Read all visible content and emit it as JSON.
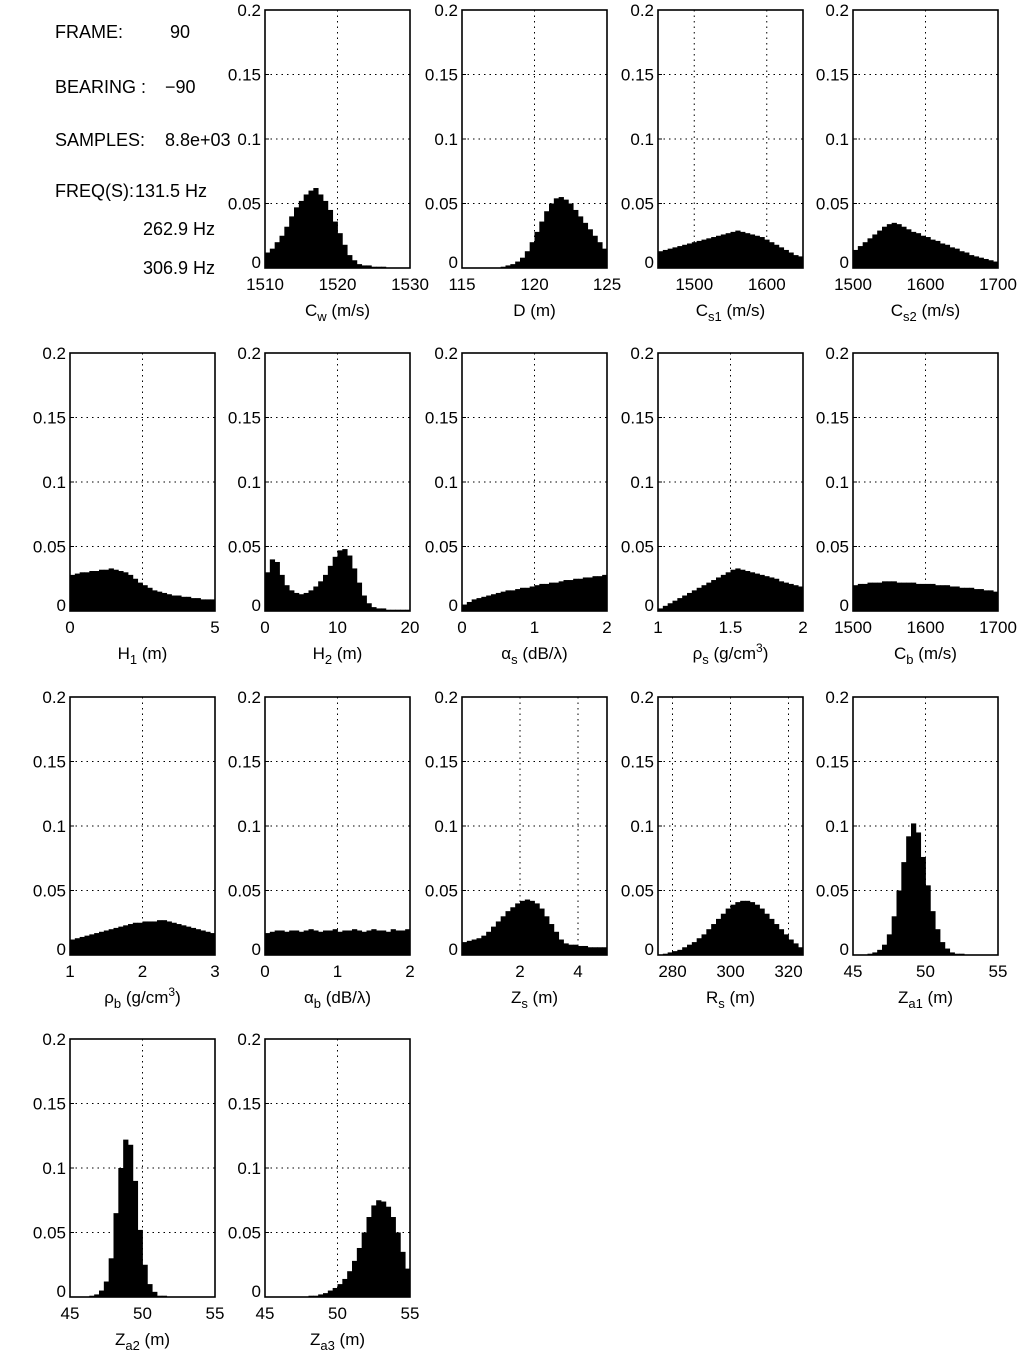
{
  "info": {
    "frame_label": "FRAME:",
    "frame_value": "90",
    "bearing_label": "BEARING :",
    "bearing_value": "−90",
    "samples_label": "SAMPLES:",
    "samples_value": "8.8e+03",
    "freq_label": "FREQ(S):",
    "freqs": [
      "131.5 Hz",
      "262.9 Hz",
      "306.9 Hz"
    ]
  },
  "chart_data": [
    {
      "type": "bar",
      "xlabel": "C_w (m/s)",
      "xlabel_main": "C",
      "xlabel_sub": "w",
      "xlabel_unit": " (m/s)",
      "xlim": [
        1510,
        1530
      ],
      "ylim": [
        0,
        0.2
      ],
      "yticks": [
        "0",
        "0.05",
        "0.1",
        "0.15",
        "0.2"
      ],
      "xticks": [
        1510,
        1520,
        1530
      ],
      "xtick_labels": [
        "1510",
        "1520",
        "1530"
      ],
      "grid_x": [
        1520
      ],
      "values": [
        0.012,
        0.015,
        0.02,
        0.025,
        0.032,
        0.04,
        0.047,
        0.052,
        0.057,
        0.06,
        0.062,
        0.057,
        0.052,
        0.045,
        0.036,
        0.027,
        0.018,
        0.01,
        0.006,
        0.003,
        0.002,
        0.002,
        0.001,
        0.001,
        0.001,
        0,
        0,
        0,
        0,
        0
      ]
    },
    {
      "type": "bar",
      "xlabel": "D (m)",
      "xlabel_main": "D",
      "xlabel_sub": "",
      "xlabel_unit": " (m)",
      "xlim": [
        115,
        125
      ],
      "ylim": [
        0,
        0.2
      ],
      "yticks": [
        "0",
        "0.05",
        "0.1",
        "0.15",
        "0.2"
      ],
      "xticks": [
        115,
        120,
        125
      ],
      "xtick_labels": [
        "115",
        "120",
        "125"
      ],
      "grid_x": [
        120
      ],
      "values": [
        0,
        0,
        0,
        0,
        0,
        0,
        0,
        0,
        0.001,
        0.002,
        0.003,
        0.005,
        0.008,
        0.013,
        0.02,
        0.028,
        0.036,
        0.044,
        0.05,
        0.054,
        0.055,
        0.053,
        0.05,
        0.045,
        0.04,
        0.035,
        0.03,
        0.025,
        0.02,
        0.015
      ]
    },
    {
      "type": "bar",
      "xlabel": "C_s1 (m/s)",
      "xlabel_main": "C",
      "xlabel_sub": "s1",
      "xlabel_unit": " (m/s)",
      "xlim": [
        1450,
        1650
      ],
      "ylim": [
        0,
        0.2
      ],
      "yticks": [
        "0",
        "0.05",
        "0.1",
        "0.15",
        "0.2"
      ],
      "xticks": [
        1500,
        1600
      ],
      "xtick_labels": [
        "1500",
        "1600"
      ],
      "grid_x": [
        1500,
        1600
      ],
      "values": [
        0.013,
        0.014,
        0.015,
        0.016,
        0.017,
        0.018,
        0.019,
        0.02,
        0.021,
        0.022,
        0.023,
        0.024,
        0.025,
        0.026,
        0.027,
        0.028,
        0.029,
        0.028,
        0.027,
        0.026,
        0.025,
        0.024,
        0.022,
        0.02,
        0.018,
        0.016,
        0.014,
        0.012,
        0.01,
        0.009
      ]
    },
    {
      "type": "bar",
      "xlabel": "C_s2 (m/s)",
      "xlabel_main": "C",
      "xlabel_sub": "s2",
      "xlabel_unit": " (m/s)",
      "xlim": [
        1500,
        1700
      ],
      "ylim": [
        0,
        0.2
      ],
      "yticks": [
        "0",
        "0.05",
        "0.1",
        "0.15",
        "0.2"
      ],
      "xticks": [
        1500,
        1600,
        1700
      ],
      "xtick_labels": [
        "1500",
        "1600",
        "1700"
      ],
      "grid_x": [
        1600
      ],
      "values": [
        0.014,
        0.017,
        0.02,
        0.023,
        0.026,
        0.029,
        0.032,
        0.034,
        0.035,
        0.034,
        0.032,
        0.03,
        0.028,
        0.027,
        0.025,
        0.024,
        0.022,
        0.021,
        0.019,
        0.018,
        0.016,
        0.015,
        0.013,
        0.012,
        0.01,
        0.009,
        0.008,
        0.007,
        0.006,
        0.005
      ]
    },
    {
      "type": "bar",
      "xlabel": "H_1 (m)",
      "xlabel_main": "H",
      "xlabel_sub": "1",
      "xlabel_unit": " (m)",
      "xlim": [
        0,
        5
      ],
      "ylim": [
        0,
        0.2
      ],
      "yticks": [
        "0",
        "0.05",
        "0.1",
        "0.15",
        "0.2"
      ],
      "xticks": [
        0,
        5
      ],
      "xtick_labels": [
        "0",
        "5"
      ],
      "grid_x": [
        2.5
      ],
      "values": [
        0.028,
        0.029,
        0.03,
        0.03,
        0.031,
        0.031,
        0.032,
        0.032,
        0.033,
        0.032,
        0.031,
        0.03,
        0.028,
        0.025,
        0.022,
        0.02,
        0.018,
        0.016,
        0.015,
        0.014,
        0.013,
        0.012,
        0.012,
        0.011,
        0.011,
        0.01,
        0.01,
        0.009,
        0.009,
        0.009
      ]
    },
    {
      "type": "bar",
      "xlabel": "H_2 (m)",
      "xlabel_main": "H",
      "xlabel_sub": "2",
      "xlabel_unit": " (m)",
      "xlim": [
        0,
        20
      ],
      "ylim": [
        0,
        0.2
      ],
      "yticks": [
        "0",
        "0.05",
        "0.1",
        "0.15",
        "0.2"
      ],
      "xticks": [
        0,
        10,
        20
      ],
      "xtick_labels": [
        "0",
        "10",
        "20"
      ],
      "grid_x": [
        10
      ],
      "values": [
        0.03,
        0.04,
        0.038,
        0.028,
        0.02,
        0.016,
        0.014,
        0.013,
        0.014,
        0.016,
        0.019,
        0.023,
        0.028,
        0.035,
        0.042,
        0.047,
        0.048,
        0.043,
        0.033,
        0.022,
        0.012,
        0.006,
        0.003,
        0.002,
        0.002,
        0.001,
        0.001,
        0.001,
        0.001,
        0.001
      ]
    },
    {
      "type": "bar",
      "xlabel": "α_s (dB/λ)",
      "xlabel_main": "α",
      "xlabel_sub": "s",
      "xlabel_unit": " (dB/λ)",
      "xlim": [
        0,
        2
      ],
      "ylim": [
        0,
        0.2
      ],
      "yticks": [
        "0",
        "0.05",
        "0.1",
        "0.15",
        "0.2"
      ],
      "xticks": [
        0,
        1,
        2
      ],
      "xtick_labels": [
        "0",
        "1",
        "2"
      ],
      "grid_x": [
        1
      ],
      "values": [
        0.005,
        0.007,
        0.009,
        0.01,
        0.011,
        0.012,
        0.013,
        0.014,
        0.015,
        0.016,
        0.016,
        0.017,
        0.018,
        0.018,
        0.019,
        0.02,
        0.021,
        0.021,
        0.022,
        0.022,
        0.023,
        0.024,
        0.024,
        0.025,
        0.025,
        0.026,
        0.026,
        0.027,
        0.027,
        0.028
      ]
    },
    {
      "type": "bar",
      "xlabel": "ρ_s (g/cm^3)",
      "xlabel_main": "ρ",
      "xlabel_sub": "s",
      "xlabel_unit": " (g/cm",
      "xlabel_sup": "3",
      "xlabel_tail": ")",
      "xlim": [
        1,
        2
      ],
      "ylim": [
        0,
        0.2
      ],
      "yticks": [
        "0",
        "0.05",
        "0.1",
        "0.15",
        "0.2"
      ],
      "xticks": [
        1,
        1.5,
        2
      ],
      "xtick_labels": [
        "1",
        "1.5",
        "2"
      ],
      "grid_x": [
        1.5
      ],
      "values": [
        0.002,
        0.004,
        0.006,
        0.008,
        0.01,
        0.012,
        0.014,
        0.016,
        0.018,
        0.02,
        0.022,
        0.024,
        0.026,
        0.028,
        0.03,
        0.032,
        0.033,
        0.032,
        0.031,
        0.03,
        0.029,
        0.028,
        0.027,
        0.026,
        0.025,
        0.023,
        0.022,
        0.021,
        0.02,
        0.019
      ]
    },
    {
      "type": "bar",
      "xlabel": "C_b (m/s)",
      "xlabel_main": "C",
      "xlabel_sub": "b",
      "xlabel_unit": " (m/s)",
      "xlim": [
        1500,
        1700
      ],
      "ylim": [
        0,
        0.2
      ],
      "yticks": [
        "0",
        "0.05",
        "0.1",
        "0.15",
        "0.2"
      ],
      "xticks": [
        1500,
        1600,
        1700
      ],
      "xtick_labels": [
        "1500",
        "1600",
        "1700"
      ],
      "grid_x": [
        1600
      ],
      "values": [
        0.02,
        0.021,
        0.021,
        0.022,
        0.022,
        0.022,
        0.023,
        0.023,
        0.023,
        0.022,
        0.022,
        0.022,
        0.022,
        0.021,
        0.021,
        0.021,
        0.021,
        0.02,
        0.02,
        0.02,
        0.019,
        0.019,
        0.018,
        0.018,
        0.018,
        0.017,
        0.017,
        0.016,
        0.016,
        0.015
      ]
    },
    {
      "type": "bar",
      "xlabel": "ρ_b (g/cm^3)",
      "xlabel_main": "ρ",
      "xlabel_sub": "b",
      "xlabel_unit": " (g/cm",
      "xlabel_sup": "3",
      "xlabel_tail": ")",
      "xlim": [
        1,
        3
      ],
      "ylim": [
        0,
        0.2
      ],
      "yticks": [
        "0",
        "0.05",
        "0.1",
        "0.15",
        "0.2"
      ],
      "xticks": [
        1,
        2,
        3
      ],
      "xtick_labels": [
        "1",
        "2",
        "3"
      ],
      "grid_x": [
        2
      ],
      "values": [
        0.012,
        0.013,
        0.014,
        0.015,
        0.016,
        0.017,
        0.018,
        0.019,
        0.02,
        0.021,
        0.022,
        0.023,
        0.024,
        0.025,
        0.025,
        0.026,
        0.026,
        0.026,
        0.027,
        0.027,
        0.026,
        0.025,
        0.024,
        0.023,
        0.022,
        0.021,
        0.02,
        0.019,
        0.018,
        0.017
      ]
    },
    {
      "type": "bar",
      "xlabel": "α_b (dB/λ)",
      "xlabel_main": "α",
      "xlabel_sub": "b",
      "xlabel_unit": " (dB/λ)",
      "xlim": [
        0,
        2
      ],
      "ylim": [
        0,
        0.2
      ],
      "yticks": [
        "0",
        "0.05",
        "0.1",
        "0.15",
        "0.2"
      ],
      "xticks": [
        0,
        1,
        2
      ],
      "xtick_labels": [
        "0",
        "1",
        "2"
      ],
      "grid_x": [
        1
      ],
      "values": [
        0.017,
        0.018,
        0.019,
        0.019,
        0.018,
        0.019,
        0.019,
        0.018,
        0.019,
        0.02,
        0.019,
        0.018,
        0.019,
        0.019,
        0.02,
        0.018,
        0.019,
        0.019,
        0.02,
        0.019,
        0.018,
        0.019,
        0.02,
        0.019,
        0.019,
        0.018,
        0.02,
        0.019,
        0.019,
        0.02
      ]
    },
    {
      "type": "bar",
      "xlabel": "Z_s (m)",
      "xlabel_main": "Z",
      "xlabel_sub": "s",
      "xlabel_unit": " (m)",
      "xlim": [
        0,
        5
      ],
      "ylim": [
        0,
        0.2
      ],
      "yticks": [
        "0",
        "0.05",
        "0.1",
        "0.15",
        "0.2"
      ],
      "xticks": [
        2,
        4
      ],
      "xtick_labels": [
        "2",
        "4"
      ],
      "grid_x": [
        2,
        4
      ],
      "values": [
        0.01,
        0.011,
        0.012,
        0.013,
        0.015,
        0.018,
        0.022,
        0.026,
        0.03,
        0.034,
        0.037,
        0.04,
        0.042,
        0.043,
        0.042,
        0.04,
        0.036,
        0.03,
        0.024,
        0.018,
        0.012,
        0.009,
        0.008,
        0.008,
        0.007,
        0.007,
        0.006,
        0.006,
        0.006,
        0.006
      ]
    },
    {
      "type": "bar",
      "xlabel": "R_s (m)",
      "xlabel_main": "R",
      "xlabel_sub": "s",
      "xlabel_unit": " (m)",
      "xlim": [
        275,
        325
      ],
      "ylim": [
        0,
        0.2
      ],
      "yticks": [
        "0",
        "0.05",
        "0.1",
        "0.15",
        "0.2"
      ],
      "xticks": [
        280,
        300,
        320
      ],
      "xtick_labels": [
        "280",
        "300",
        "320"
      ],
      "grid_x": [
        280,
        300,
        320
      ],
      "values": [
        0,
        0.001,
        0.002,
        0.003,
        0.004,
        0.006,
        0.008,
        0.01,
        0.013,
        0.016,
        0.02,
        0.024,
        0.028,
        0.032,
        0.036,
        0.039,
        0.041,
        0.042,
        0.042,
        0.041,
        0.039,
        0.036,
        0.032,
        0.028,
        0.024,
        0.02,
        0.016,
        0.012,
        0.009,
        0.006
      ]
    },
    {
      "type": "bar",
      "xlabel": "Z_a1 (m)",
      "xlabel_main": "Z",
      "xlabel_sub": "a1",
      "xlabel_unit": " (m)",
      "xlim": [
        45,
        55
      ],
      "ylim": [
        0,
        0.2
      ],
      "yticks": [
        "0",
        "0.05",
        "0.1",
        "0.15",
        "0.2"
      ],
      "xticks": [
        45,
        50,
        55
      ],
      "xtick_labels": [
        "45",
        "50",
        "55"
      ],
      "grid_x": [
        50
      ],
      "values": [
        0,
        0,
        0,
        0.001,
        0.002,
        0.004,
        0.008,
        0.016,
        0.03,
        0.05,
        0.072,
        0.092,
        0.102,
        0.095,
        0.076,
        0.054,
        0.034,
        0.02,
        0.01,
        0.005,
        0.002,
        0.001,
        0.001,
        0,
        0,
        0,
        0,
        0,
        0,
        0
      ]
    },
    {
      "type": "bar",
      "xlabel": "Z_a2 (m)",
      "xlabel_main": "Z",
      "xlabel_sub": "a2",
      "xlabel_unit": " (m)",
      "xlim": [
        45,
        55
      ],
      "ylim": [
        0,
        0.2
      ],
      "yticks": [
        "0",
        "0.05",
        "0.1",
        "0.15",
        "0.2"
      ],
      "xticks": [
        45,
        50,
        55
      ],
      "xtick_labels": [
        "45",
        "50",
        "55"
      ],
      "grid_x": [
        50
      ],
      "values": [
        0,
        0,
        0,
        0,
        0.001,
        0.002,
        0.005,
        0.012,
        0.03,
        0.065,
        0.1,
        0.122,
        0.118,
        0.09,
        0.052,
        0.025,
        0.01,
        0.004,
        0.001,
        0.001,
        0,
        0,
        0,
        0,
        0,
        0,
        0,
        0,
        0,
        0
      ]
    },
    {
      "type": "bar",
      "xlabel": "Z_a3 (m)",
      "xlabel_main": "Z",
      "xlabel_sub": "a3",
      "xlabel_unit": " (m)",
      "xlim": [
        45,
        55
      ],
      "ylim": [
        0,
        0.2
      ],
      "yticks": [
        "0",
        "0.05",
        "0.1",
        "0.15",
        "0.2"
      ],
      "xticks": [
        45,
        50,
        55
      ],
      "xtick_labels": [
        "45",
        "50",
        "55"
      ],
      "grid_x": [
        50
      ],
      "values": [
        0,
        0,
        0,
        0,
        0,
        0,
        0,
        0,
        0,
        0.001,
        0.001,
        0.002,
        0.003,
        0.005,
        0.007,
        0.01,
        0.014,
        0.02,
        0.028,
        0.038,
        0.05,
        0.062,
        0.071,
        0.075,
        0.074,
        0.07,
        0.062,
        0.05,
        0.035,
        0.022
      ]
    }
  ]
}
